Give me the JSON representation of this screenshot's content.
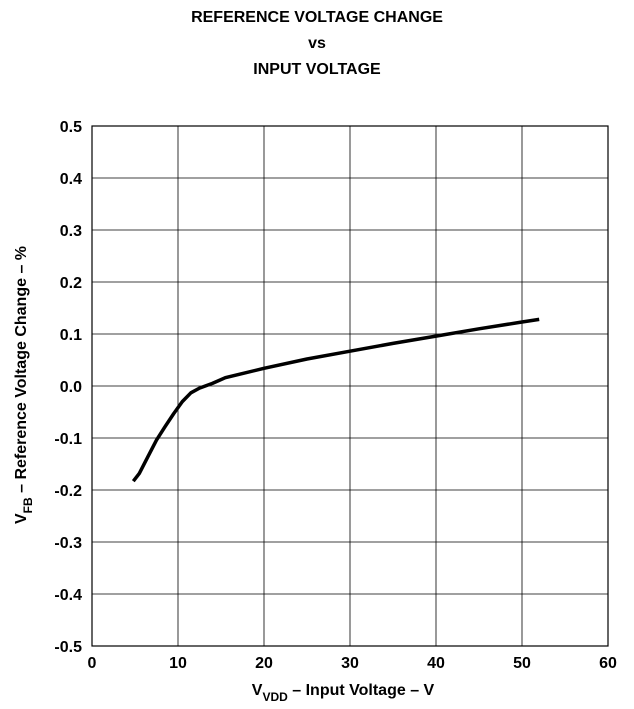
{
  "chart_data": {
    "type": "line",
    "title_lines": [
      "REFERENCE VOLTAGE CHANGE",
      "vs",
      "INPUT VOLTAGE"
    ],
    "xlabel": {
      "base": "V",
      "sub": "VDD",
      "rest": " – Input Voltage  –  V"
    },
    "ylabel": {
      "base": "V",
      "sub": "FB",
      "rest": " – Reference Voltage Change – %"
    },
    "xlim": [
      0,
      60
    ],
    "ylim": [
      -0.5,
      0.5
    ],
    "xticks": [
      0,
      10,
      20,
      30,
      40,
      50,
      60
    ],
    "xtick_labels": [
      "0",
      "10",
      "20",
      "30",
      "40",
      "50",
      "60"
    ],
    "yticks": [
      0.5,
      0.4,
      0.3,
      0.2,
      0.1,
      0.0,
      -0.1,
      -0.2,
      -0.3,
      -0.4,
      -0.5
    ],
    "ytick_labels": [
      "0.5",
      "0.4",
      "0.3",
      "0.2",
      "0.1",
      "0.0",
      "-0.1",
      "-0.2",
      "-0.3",
      "-0.4",
      "-0.5"
    ],
    "grid": true,
    "series": [
      {
        "color": "#000000",
        "x": [
          4.8,
          5.5,
          6.5,
          7.5,
          8.5,
          9.5,
          10.5,
          11.5,
          12.5,
          14,
          15.5,
          17,
          20,
          25,
          30,
          35,
          40,
          45,
          50,
          52
        ],
        "y": [
          -0.183,
          -0.168,
          -0.136,
          -0.104,
          -0.078,
          -0.053,
          -0.03,
          -0.013,
          -0.004,
          0.005,
          0.016,
          0.022,
          0.034,
          0.052,
          0.067,
          0.082,
          0.096,
          0.11,
          0.123,
          0.128
        ]
      }
    ]
  }
}
